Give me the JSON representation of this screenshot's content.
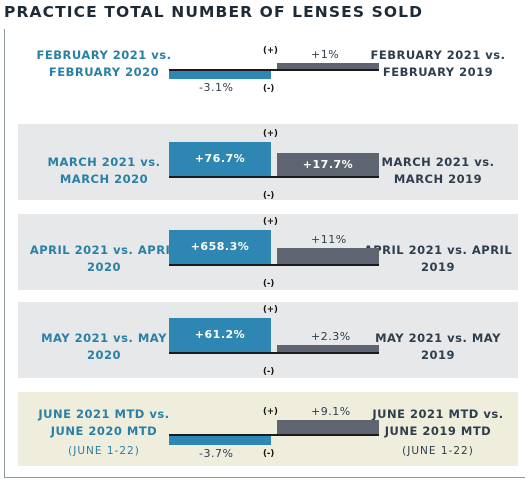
{
  "title": "PRACTICE TOTAL NUMBER OF LENSES SOLD",
  "colors": {
    "vs2020": "#2e87b2",
    "vs2019": "#5e6470",
    "left_label": "#2a7fa5",
    "right_label": "#2f3e4d",
    "highlight_row": "#efeedd",
    "shaded_row": "#e6e8ea"
  },
  "chart_data": {
    "type": "bar",
    "orientation": "diverging",
    "rows": [
      {
        "left_label": "FEBRUARY 2021 vs. FEBRUARY 2020",
        "right_label": "FEBRUARY 2021 vs. FEBRUARY 2019",
        "vs2020": -3.1,
        "vs2020_label": "-3.1%",
        "vs2019": 1,
        "vs2019_label": "+1%",
        "plus": "(+)",
        "minus": "(-)"
      },
      {
        "left_label": "MARCH 2021 vs. MARCH 2020",
        "right_label": "MARCH 2021 vs. MARCH 2019",
        "vs2020": 76.7,
        "vs2020_label": "+76.7%",
        "vs2019": 17.7,
        "vs2019_label": "+17.7%",
        "plus": "(+)",
        "minus": "(-)"
      },
      {
        "left_label": "APRIL 2021 vs. APRIL 2020",
        "right_label": "APRIL 2021 vs. APRIL 2019",
        "vs2020": 658.3,
        "vs2020_label": "+658.3%",
        "vs2019": 11,
        "vs2019_label": "+11%",
        "plus": "(+)",
        "minus": "(-)"
      },
      {
        "left_label": "MAY 2021 vs. MAY 2020",
        "right_label": "MAY 2021 vs. MAY 2019",
        "vs2020": 61.2,
        "vs2020_label": "+61.2%",
        "vs2019": 2.3,
        "vs2019_label": "+2.3%",
        "plus": "(+)",
        "minus": "(-)"
      },
      {
        "left_label": "JUNE 2021 MTD vs. JUNE 2020 MTD",
        "left_sub": "(JUNE 1-22)",
        "right_label": "JUNE 2021 MTD vs. JUNE 2019 MTD",
        "right_sub": "(JUNE 1-22)",
        "vs2020": -3.7,
        "vs2020_label": "-3.7%",
        "vs2019": 9.1,
        "vs2019_label": "+9.1%",
        "plus": "(+)",
        "minus": "(-)"
      }
    ]
  }
}
